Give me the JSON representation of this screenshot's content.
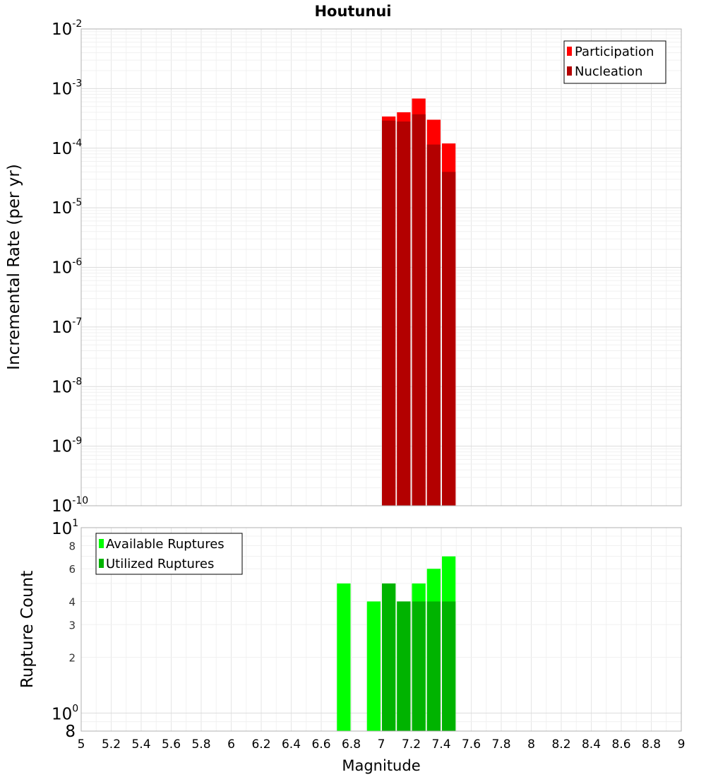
{
  "title": "Houtunui",
  "chart_data": [
    {
      "type": "bar",
      "ylabel": "Incremental Rate (per yr)",
      "yscale": "log",
      "ylim": [
        1e-10,
        0.01
      ],
      "xlim": [
        5,
        9
      ],
      "bin_width": 0.1,
      "x": [
        7.05,
        7.15,
        7.25,
        7.35,
        7.45
      ],
      "series": [
        {
          "name": "Participation",
          "color": "#ff0000",
          "values": [
            0.00034,
            0.0004,
            0.00068,
            0.0003,
            0.00012
          ]
        },
        {
          "name": "Nucleation",
          "color": "#b30000",
          "values": [
            0.00029,
            0.00028,
            0.00037,
            0.000115,
            4e-05
          ]
        }
      ],
      "ytick_labels": [
        {
          "base": "10",
          "exp": "-10"
        },
        {
          "base": "10",
          "exp": "-9"
        },
        {
          "base": "10",
          "exp": "-8"
        },
        {
          "base": "10",
          "exp": "-7"
        },
        {
          "base": "10",
          "exp": "-6"
        },
        {
          "base": "10",
          "exp": "-5"
        },
        {
          "base": "10",
          "exp": "-4"
        },
        {
          "base": "10",
          "exp": "-3"
        },
        {
          "base": "10",
          "exp": "-2"
        }
      ],
      "legend_position": "top-right",
      "grid": true
    },
    {
      "type": "bar",
      "xlabel": "Magnitude",
      "ylabel": "Rupture Count",
      "yscale": "log",
      "ylim": [
        0.8,
        10
      ],
      "xlim": [
        5,
        9
      ],
      "bin_width": 0.1,
      "series": [
        {
          "name": "Available Ruptures",
          "color": "#00ff00",
          "x": [
            6.75,
            6.95,
            7.05,
            7.15,
            7.25,
            7.35,
            7.45
          ],
          "values": [
            5,
            4,
            5,
            4,
            5,
            6,
            7
          ]
        },
        {
          "name": "Utilized Ruptures",
          "color": "#00b300",
          "x": [
            7.05,
            7.15,
            7.25,
            7.35,
            7.45
          ],
          "values": [
            5,
            4,
            4,
            4,
            4
          ]
        }
      ],
      "ytick_labels": [
        {
          "value": 0.8,
          "base": "8",
          "exp": ""
        },
        {
          "value": 1,
          "base": "10",
          "exp": "0"
        },
        {
          "value": 2,
          "base": "2",
          "exp": ""
        },
        {
          "value": 3,
          "base": "3",
          "exp": ""
        },
        {
          "value": 4,
          "base": "4",
          "exp": ""
        },
        {
          "value": 6,
          "base": "6",
          "exp": ""
        },
        {
          "value": 8,
          "base": "8",
          "exp": ""
        },
        {
          "value": 10,
          "base": "10",
          "exp": "1"
        }
      ],
      "xtick_labels": [
        "5",
        "5.2",
        "5.4",
        "5.6",
        "5.8",
        "6",
        "6.2",
        "6.4",
        "6.6",
        "6.8",
        "7",
        "7.2",
        "7.4",
        "7.6",
        "7.8",
        "8",
        "8.2",
        "8.4",
        "8.6",
        "8.8",
        "9"
      ],
      "legend_position": "top-left",
      "grid": true
    }
  ]
}
